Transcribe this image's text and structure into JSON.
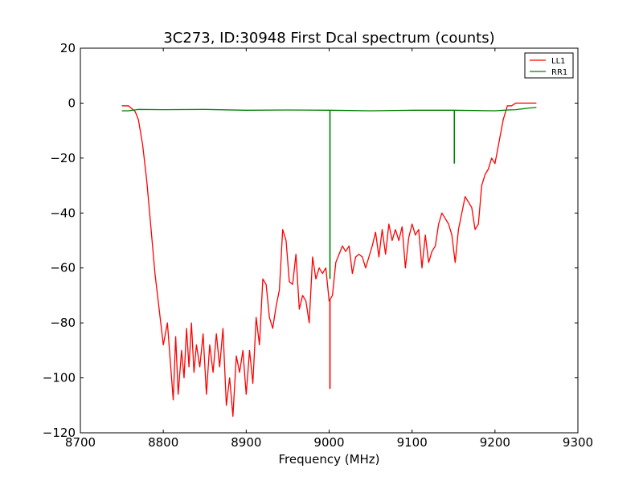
{
  "chart_data": {
    "type": "line",
    "title": "3C273, ID:30948 First Dcal spectrum (counts)",
    "xlabel": "Frequency (MHz)",
    "ylabel": "",
    "xlim": [
      8700,
      9300
    ],
    "ylim": [
      -120,
      20
    ],
    "xticks": [
      8700,
      8800,
      8900,
      9000,
      9100,
      9200,
      9300
    ],
    "yticks": [
      20,
      0,
      -20,
      -40,
      -60,
      -80,
      -100,
      -120
    ],
    "xtick_labels": [
      "8700",
      "8800",
      "8900",
      "9000",
      "9100",
      "9200",
      "9300"
    ],
    "ytick_labels": [
      "20",
      "0",
      "−20",
      "−40",
      "−60",
      "−80",
      "−100",
      "−120"
    ],
    "grid": false,
    "legend_position": "top-right",
    "series": [
      {
        "name": "LL1",
        "color": "#ff0000",
        "x": [
          8750,
          8758,
          8762,
          8766,
          8770,
          8775,
          8780,
          8785,
          8790,
          8795,
          8800,
          8805,
          8808,
          8812,
          8815,
          8818,
          8822,
          8825,
          8828,
          8831,
          8834,
          8837,
          8840,
          8844,
          8848,
          8852,
          8856,
          8860,
          8864,
          8868,
          8872,
          8876,
          8880,
          8884,
          8888,
          8892,
          8896,
          8900,
          8904,
          8908,
          8912,
          8916,
          8920,
          8924,
          8928,
          8932,
          8936,
          8940,
          8944,
          8948,
          8952,
          8956,
          8960,
          8964,
          8968,
          8972,
          8976,
          8980,
          8984,
          8988,
          8992,
          8996,
          9000,
          9004,
          9008,
          9012,
          9016,
          9020,
          9024,
          9028,
          9032,
          9036,
          9040,
          9044,
          9048,
          9052,
          9056,
          9060,
          9064,
          9068,
          9072,
          9076,
          9080,
          9084,
          9088,
          9092,
          9096,
          9100,
          9104,
          9108,
          9112,
          9116,
          9120,
          9124,
          9128,
          9132,
          9136,
          9140,
          9144,
          9148,
          9152,
          9156,
          9160,
          9164,
          9168,
          9172,
          9176,
          9180,
          9184,
          9188,
          9192,
          9196,
          9200,
          9205,
          9210,
          9215,
          9220,
          9225,
          9230,
          9240,
          9250
        ],
        "y": [
          -1,
          -1,
          -2,
          -3,
          -6,
          -15,
          -28,
          -45,
          -62,
          -75,
          -88,
          -80,
          -92,
          -108,
          -85,
          -106,
          -90,
          -100,
          -82,
          -96,
          -80,
          -98,
          -88,
          -96,
          -84,
          -106,
          -88,
          -98,
          -84,
          -96,
          -82,
          -110,
          -100,
          -114,
          -92,
          -98,
          -90,
          -106,
          -90,
          -102,
          -78,
          -88,
          -64,
          -66,
          -78,
          -82,
          -74,
          -68,
          -46,
          -50,
          -65,
          -66,
          -55,
          -75,
          -70,
          -72,
          -80,
          -56,
          -64,
          -60,
          -62,
          -60,
          -72,
          -70,
          -58,
          -55,
          -52,
          -54,
          -52,
          -62,
          -56,
          -55,
          -56,
          -60,
          -56,
          -52,
          -47,
          -56,
          -46,
          -55,
          -44,
          -50,
          -46,
          -50,
          -45,
          -60,
          -49,
          -44,
          -48,
          -46,
          -60,
          -48,
          -58,
          -54,
          -52,
          -44,
          -40,
          -42,
          -44,
          -48,
          -58,
          -46,
          -40,
          -34,
          -36,
          -38,
          -46,
          -44,
          -30,
          -26,
          -24,
          -20,
          -22,
          -14,
          -6,
          -1,
          -1,
          0,
          0,
          0,
          0
        ],
        "spikes": [
          {
            "x": 9001,
            "y": -104
          }
        ]
      },
      {
        "name": "RR1",
        "color": "#008000",
        "x": [
          8750,
          8758,
          8765,
          8770,
          8800,
          8850,
          8900,
          8950,
          9000,
          9050,
          9100,
          9150,
          9200,
          9215,
          9225,
          9235,
          9240,
          9250
        ],
        "y": [
          -2.8,
          -2.8,
          -2.5,
          -2.3,
          -2.4,
          -2.3,
          -2.6,
          -2.5,
          -2.6,
          -2.8,
          -2.6,
          -2.6,
          -2.8,
          -2.5,
          -2.4,
          -2.0,
          -1.8,
          -1.5
        ],
        "spikes": [
          {
            "x": 9001,
            "y": -64
          },
          {
            "x": 9151,
            "y": -22
          }
        ]
      }
    ]
  }
}
